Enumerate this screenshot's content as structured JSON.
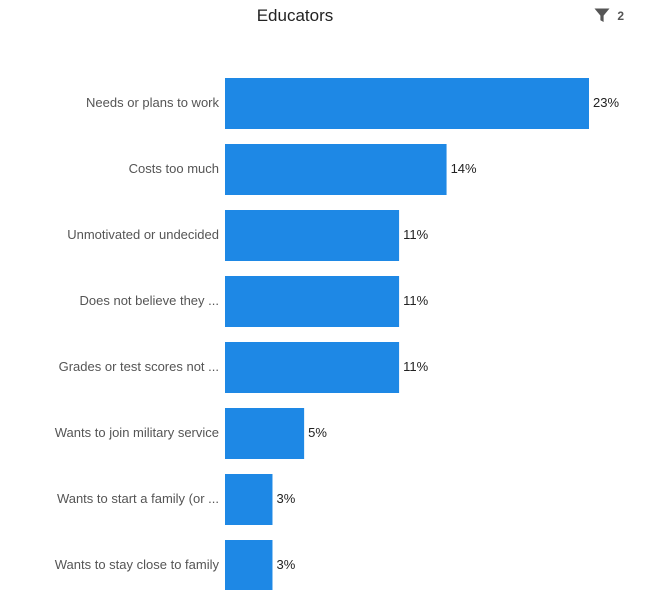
{
  "header": {
    "title": "Educators",
    "filter_count": "2",
    "filter_icon": "filter-icon"
  },
  "colors": {
    "bar": "#1e88e5",
    "label": "#555555",
    "value_label": "#222222"
  },
  "chart_data": {
    "type": "bar",
    "orientation": "horizontal",
    "title": "Educators",
    "xlabel": "",
    "ylabel": "",
    "categories": [
      "Needs or plans to work",
      "Costs too much",
      "Unmotivated or undecided",
      "Does not believe they ...",
      "Grades or test scores not ...",
      "Wants to join military service",
      "Wants to start a family (or ...",
      "Wants to stay close to family"
    ],
    "values": [
      23,
      14,
      11,
      11,
      11,
      5,
      3,
      3
    ],
    "value_labels": [
      "23%",
      "14%",
      "11%",
      "11%",
      "11%",
      "5%",
      "3%",
      "3%"
    ],
    "unit": "%",
    "grid": false,
    "legend": "none"
  }
}
